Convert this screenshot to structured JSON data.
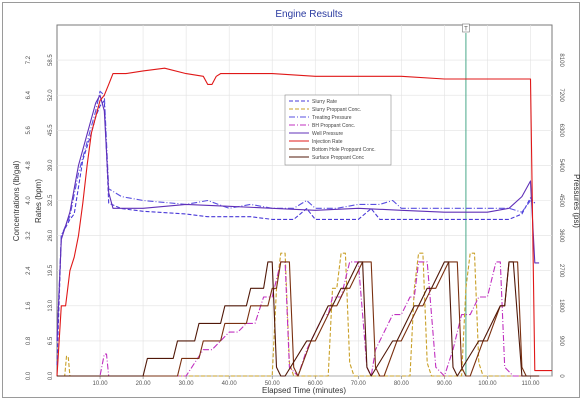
{
  "chart_data": {
    "type": "line",
    "title": "Engine Results",
    "xlabel": "Elapsed Time (minutes)",
    "y_left_outer_label": "Concentrations (lb/gal)",
    "y_left_inner_label": "Rates (bpm)",
    "y_right_label": "Pressures (psi)",
    "x_ticks": [
      "10.00",
      "20.00",
      "30.00",
      "40.00",
      "50.00",
      "60.00",
      "70.00",
      "80.00",
      "90.00",
      "100.00",
      "110.00"
    ],
    "xlim": [
      0,
      115
    ],
    "conc_ticks": [
      "0.0",
      "0.8",
      "1.6",
      "2.4",
      "3.2",
      "4.0",
      "4.8",
      "5.6",
      "6.4",
      "7.2"
    ],
    "conc_lim": [
      0,
      8
    ],
    "rate_ticks": [
      "0.0",
      "6.5",
      "13.0",
      "19.5",
      "26.0",
      "32.5",
      "39.0",
      "45.5",
      "52.0",
      "58.5"
    ],
    "rate_lim": [
      0,
      65
    ],
    "pressure_ticks": [
      "0",
      "900",
      "1800",
      "2700",
      "3600",
      "4500",
      "5400",
      "6300",
      "7200",
      "8100"
    ],
    "pressure_lim": [
      0,
      9000
    ],
    "marker_label": "T",
    "marker_x": 95,
    "legend_position": "center",
    "series": [
      {
        "name": "Slurry Rate",
        "axis": "rate",
        "color": "#4a3ad8",
        "dash": "4,2",
        "x": [
          0,
          1,
          3,
          4,
          6,
          8,
          9,
          10,
          11,
          12,
          15,
          20,
          30,
          35,
          40,
          45,
          50,
          55,
          58,
          60,
          65,
          70,
          73,
          75,
          80,
          85,
          90,
          95,
          100,
          105,
          108,
          110,
          111
        ],
        "y": [
          2,
          26,
          29,
          30,
          40,
          45,
          48,
          50,
          51,
          32,
          31,
          30.5,
          30,
          29.5,
          29.5,
          29.5,
          29,
          29,
          31,
          29,
          29,
          29,
          31,
          29,
          29,
          29,
          29,
          29,
          29,
          29,
          30,
          33,
          32
        ]
      },
      {
        "name": "Slurry Proppant Conc.",
        "axis": "conc",
        "color": "#c9a028",
        "dash": "4,2",
        "x": [
          0,
          1.8,
          2.2,
          2.6,
          3,
          5,
          6,
          8,
          10,
          12,
          14,
          18,
          28,
          30,
          34,
          36,
          40,
          42,
          44,
          46,
          48,
          50,
          51,
          52,
          53,
          54,
          55,
          56,
          57,
          58,
          59,
          60,
          61,
          62,
          63,
          64,
          65,
          66,
          67,
          68,
          69,
          70,
          71,
          72,
          73,
          74,
          75,
          76,
          77,
          78,
          79,
          80,
          81,
          82,
          83,
          84,
          85,
          86,
          87,
          88,
          89,
          90,
          91,
          92,
          93,
          94,
          95,
          96,
          97,
          98,
          99,
          100,
          101,
          102,
          103,
          104,
          105,
          106,
          107,
          108,
          110,
          112
        ],
        "y": [
          0,
          0,
          0.45,
          0.45,
          0,
          0,
          0,
          0,
          0,
          0,
          0,
          0,
          0,
          0,
          0,
          0,
          0,
          0,
          0,
          0,
          0,
          0,
          2,
          2.8,
          2.8,
          0.3,
          0,
          0,
          0,
          0,
          0,
          0,
          0,
          0,
          0,
          2,
          2,
          2.8,
          2.8,
          0.3,
          0,
          0,
          0,
          0,
          0,
          0,
          0,
          0,
          0,
          0,
          0,
          0,
          0,
          0,
          2,
          2.8,
          2.8,
          0.3,
          0,
          0,
          0,
          0,
          0,
          0,
          0,
          0,
          2,
          2.8,
          2.8,
          0.3,
          0,
          0,
          0,
          0,
          0,
          0,
          0,
          0,
          0,
          0,
          0,
          0
        ]
      },
      {
        "name": "Treating Pressure",
        "axis": "pressure",
        "color": "#5a50e0",
        "dash": "6,2,1,2",
        "x": [
          0,
          1,
          3,
          5,
          7,
          9,
          10,
          11,
          12,
          15,
          20,
          30,
          35,
          40,
          45,
          50,
          55,
          58,
          60,
          65,
          70,
          75,
          78,
          80,
          85,
          90,
          95,
          100,
          105,
          108,
          110
        ],
        "y": [
          900,
          3600,
          4100,
          5200,
          6000,
          6800,
          7300,
          7200,
          4800,
          4600,
          4500,
          4400,
          4500,
          4300,
          4400,
          4300,
          4300,
          4500,
          4300,
          4300,
          4400,
          4400,
          4500,
          4300,
          4300,
          4300,
          4300,
          4300,
          4300,
          4200,
          4500
        ]
      },
      {
        "name": "BH Proppant Conc.",
        "axis": "conc",
        "color": "#c030c0",
        "dash": "6,2,1,2",
        "x": [
          0,
          10,
          11,
          11.5,
          12,
          28,
          30,
          34,
          36,
          40,
          42,
          44,
          46,
          48,
          50,
          52,
          53,
          54,
          56,
          58,
          60,
          62,
          63,
          64,
          66,
          68,
          70,
          72,
          73,
          74,
          76,
          78,
          80,
          82,
          83,
          84,
          86,
          88,
          90,
          92,
          93,
          94,
          96,
          98,
          100,
          102,
          103,
          104,
          106,
          108,
          110,
          112
        ],
        "y": [
          0,
          0,
          0.5,
          0.5,
          0,
          0,
          0,
          0.6,
          0.6,
          1,
          1,
          1.2,
          1.2,
          1.8,
          1.8,
          2.6,
          2.6,
          0.2,
          0,
          0.6,
          1,
          1.4,
          1.4,
          1.8,
          1.8,
          2.6,
          2.6,
          0.2,
          0,
          0.6,
          1,
          1.4,
          1.4,
          1.8,
          1.8,
          2.6,
          2.6,
          0.2,
          0,
          0.6,
          1,
          1.4,
          1.4,
          1.8,
          1.8,
          2.6,
          2.6,
          0.2,
          0,
          0,
          0,
          0
        ]
      },
      {
        "name": "Well Pressure",
        "axis": "pressure",
        "color": "#6030b8",
        "dash": "",
        "x": [
          0,
          1,
          3,
          5,
          7,
          9,
          10,
          11,
          12,
          13,
          20,
          30,
          40,
          50,
          60,
          70,
          80,
          90,
          100,
          105,
          108,
          110,
          111,
          112
        ],
        "y": [
          900,
          3500,
          4200,
          5400,
          6200,
          7000,
          7200,
          6800,
          4700,
          4300,
          4300,
          4400,
          4350,
          4300,
          4250,
          4300,
          4250,
          4200,
          4200,
          4300,
          4600,
          5000,
          2900,
          2900
        ]
      },
      {
        "name": "Injection Rate",
        "axis": "rate",
        "color": "#e01818",
        "dash": "",
        "x": [
          0,
          1,
          2,
          3,
          4,
          5,
          6,
          7,
          8,
          9,
          10,
          11,
          12,
          13,
          16,
          20,
          25,
          30,
          34,
          35,
          36,
          37,
          38,
          40,
          50,
          60,
          70,
          80,
          90,
          100,
          105,
          108,
          109,
          110,
          111,
          115
        ],
        "y": [
          0,
          13,
          13,
          19.5,
          22,
          26,
          32,
          39,
          45,
          48,
          51,
          52,
          54,
          56,
          56,
          56.5,
          57,
          56,
          55.5,
          54,
          54,
          55.5,
          56,
          56,
          56,
          55.5,
          55.5,
          55.5,
          55,
          55,
          55,
          55,
          55,
          55,
          1,
          1
        ]
      },
      {
        "name": "Bottom Hole Proppant Conc.",
        "axis": "conc",
        "color": "#7a3010",
        "dash": "",
        "x": [
          0,
          28,
          29,
          33,
          34,
          38,
          39,
          44,
          45,
          49,
          50,
          51,
          52,
          53,
          54,
          55,
          56,
          59,
          60,
          64,
          65,
          67,
          68,
          71,
          72,
          73,
          74,
          75,
          76,
          79,
          80,
          84,
          85,
          87,
          88,
          91,
          92,
          93,
          94,
          95,
          96,
          99,
          100,
          103,
          104,
          105,
          106,
          107,
          108,
          109,
          110,
          112
        ],
        "y": [
          0,
          0,
          0.4,
          0.4,
          0.8,
          0.8,
          1.2,
          1.2,
          1.6,
          1.6,
          2,
          2,
          2.6,
          2.6,
          2.6,
          0.2,
          0,
          0.8,
          0.8,
          1.6,
          1.6,
          2,
          2,
          2.6,
          2.6,
          2.6,
          0.2,
          0,
          0,
          0.8,
          0.8,
          1.6,
          1.6,
          2,
          2,
          2.6,
          2.6,
          2.6,
          0.2,
          0,
          0,
          0.8,
          0.8,
          1.6,
          1.6,
          2.6,
          2.6,
          2.6,
          0.2,
          0,
          0,
          0
        ]
      },
      {
        "name": "Surface Proppant Conc",
        "axis": "conc",
        "color": "#501808",
        "dash": "",
        "x": [
          0,
          20,
          21,
          27,
          28,
          32,
          33,
          38,
          39,
          44,
          45,
          48,
          49,
          50,
          51,
          52,
          53,
          58,
          59,
          63,
          64,
          66,
          67,
          70,
          71,
          72,
          73,
          78,
          79,
          83,
          84,
          86,
          87,
          90,
          91,
          92,
          93,
          98,
          99,
          103,
          104,
          105,
          106,
          108,
          112
        ],
        "y": [
          0,
          0,
          0.4,
          0.4,
          0.8,
          0.8,
          1.2,
          1.2,
          1.6,
          1.6,
          2,
          2,
          2.6,
          2.6,
          0.2,
          0,
          0,
          0.8,
          0.8,
          1.6,
          1.6,
          2,
          2,
          2.6,
          2.6,
          0.2,
          0,
          0.8,
          0.8,
          1.6,
          1.6,
          2,
          2,
          2.6,
          2.6,
          0.2,
          0,
          0.8,
          0.8,
          1.6,
          1.6,
          2.6,
          2.6,
          0,
          0
        ]
      }
    ]
  }
}
